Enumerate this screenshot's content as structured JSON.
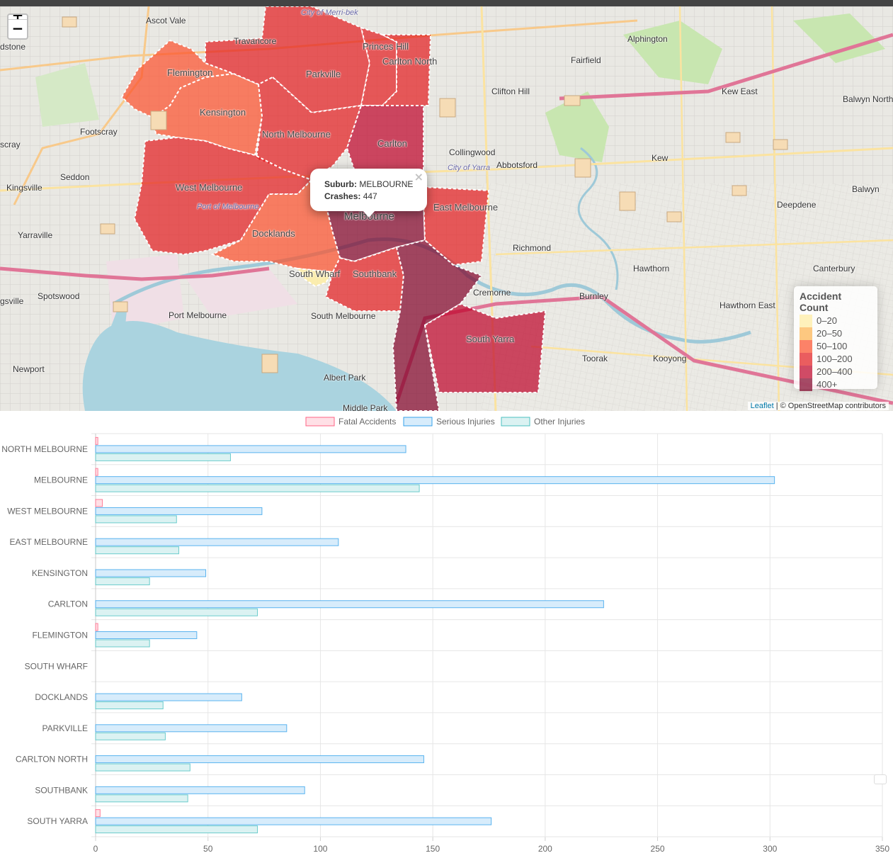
{
  "map": {
    "zoom_in": "+",
    "zoom_out": "−",
    "popup": {
      "suburb_label": "Suburb:",
      "suburb_value": "MELBOURNE",
      "crashes_label": "Crashes:",
      "crashes_value": "447",
      "close": "×"
    },
    "legend": {
      "title": "Accident Count",
      "items": [
        {
          "label": "0–20",
          "color": "#ffeda0"
        },
        {
          "label": "20–50",
          "color": "#feb24c"
        },
        {
          "label": "50–100",
          "color": "#fc4e2a"
        },
        {
          "label": "100–200",
          "color": "#e31a1c"
        },
        {
          "label": "200–400",
          "color": "#bd0026"
        },
        {
          "label": "400+",
          "color": "#800026"
        }
      ]
    },
    "attribution": {
      "leaflet": "Leaflet",
      "rest": " | © OpenStreetMap contributors"
    },
    "suburb_labels": [
      "Flemington",
      "Kensington",
      "Parkville",
      "Princes Hill",
      "Carlton North",
      "North Melbourne",
      "Carlton",
      "West Melbourne",
      "Melbourne",
      "East Melbourne",
      "Docklands",
      "Southbank",
      "South Wharf",
      "South Yarra"
    ],
    "place_labels": [
      "Ascot Vale",
      "Travancore",
      "Alphington",
      "Fairfield",
      "Clifton Hill",
      "Kew East",
      "Balwyn North",
      "Footscray",
      "Seddon",
      "Kingsville",
      "Yarraville",
      "Collingwood",
      "Abbotsford",
      "Kew",
      "Balwyn",
      "Deepdene",
      "Richmond",
      "Hawthorn",
      "Canterbury",
      "Cremorne",
      "Burnley",
      "Hawthorn East",
      "Spotswood",
      "Port Melbourne",
      "South Melbourne",
      "Albert Park",
      "Toorak",
      "Kooyong",
      "Newport",
      "Middle Park",
      "City of Yarra",
      "City of Merri-bek",
      "Port of Melbourne"
    ],
    "place_label_partial": [
      "dstone",
      "scray",
      "gsville"
    ]
  },
  "chart_data": {
    "type": "bar",
    "orientation": "horizontal",
    "categories": [
      "NORTH MELBOURNE",
      "MELBOURNE",
      "WEST MELBOURNE",
      "EAST MELBOURNE",
      "KENSINGTON",
      "CARLTON",
      "FLEMINGTON",
      "SOUTH WHARF",
      "DOCKLANDS",
      "PARKVILLE",
      "CARLTON NORTH",
      "SOUTHBANK",
      "SOUTH YARRA"
    ],
    "series": [
      {
        "name": "Fatal Accidents",
        "values": [
          1,
          1,
          3,
          0,
          0,
          0,
          1,
          0,
          0,
          0,
          0,
          0,
          2
        ],
        "fill": "#ffe0e6",
        "stroke": "#ff6384"
      },
      {
        "name": "Serious Injuries",
        "values": [
          138,
          302,
          74,
          108,
          49,
          226,
          45,
          0,
          65,
          85,
          146,
          93,
          176
        ],
        "fill": "#d7ecfb",
        "stroke": "#36a2eb"
      },
      {
        "name": "Other Injuries",
        "values": [
          60,
          144,
          36,
          37,
          24,
          72,
          24,
          0,
          30,
          31,
          42,
          41,
          72
        ],
        "fill": "#dbf2f2",
        "stroke": "#4bc0c0"
      }
    ],
    "xlim": [
      0,
      350
    ],
    "xticks": [
      0,
      50,
      100,
      150,
      200,
      250,
      300,
      350
    ],
    "xlabel": "",
    "ylabel": "",
    "legend_position": "top"
  }
}
